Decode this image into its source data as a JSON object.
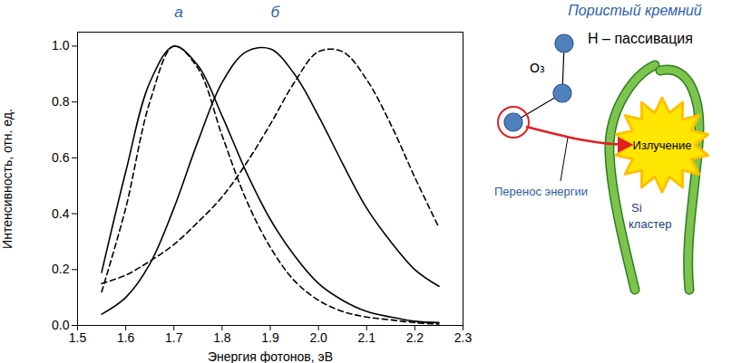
{
  "chart_data": {
    "type": "line",
    "x_label": "Энергия фотонов, эВ",
    "y_label": "Интенсивность, отн. ед.",
    "x": [
      1.55,
      1.6,
      1.65,
      1.7,
      1.75,
      1.8,
      1.85,
      1.9,
      1.95,
      2.0,
      2.05,
      2.1,
      2.15,
      2.2,
      2.25
    ],
    "series": [
      {
        "color": "#000000",
        "line_style": "solid",
        "values": [
          0.19,
          0.55,
          0.87,
          1.0,
          0.93,
          0.75,
          0.55,
          0.38,
          0.25,
          0.15,
          0.09,
          0.05,
          0.03,
          0.015,
          0.01
        ]
      },
      {
        "color": "#000000",
        "line_style": "dashed",
        "values": [
          0.12,
          0.42,
          0.8,
          1.0,
          0.92,
          0.68,
          0.45,
          0.28,
          0.16,
          0.09,
          0.05,
          0.03,
          0.02,
          0.01,
          0.005
        ]
      },
      {
        "color": "#000000",
        "line_style": "solid",
        "values": [
          0.04,
          0.1,
          0.22,
          0.42,
          0.66,
          0.87,
          0.98,
          0.99,
          0.9,
          0.75,
          0.58,
          0.42,
          0.3,
          0.2,
          0.14
        ]
      },
      {
        "color": "#000000",
        "line_style": "dashed",
        "values": [
          0.15,
          0.18,
          0.23,
          0.29,
          0.37,
          0.46,
          0.58,
          0.72,
          0.87,
          0.98,
          0.98,
          0.88,
          0.72,
          0.53,
          0.35
        ]
      }
    ],
    "annotations": [
      {
        "text": "а",
        "x": 1.71,
        "y": 1.12
      },
      {
        "text": "б",
        "x": 1.91,
        "y": 1.12
      }
    ],
    "xlim": [
      1.5,
      2.3
    ],
    "xticks": [
      1.5,
      1.6,
      1.7,
      1.8,
      1.9,
      {
        "value": 2,
        "label": "2.0"
      },
      2.1,
      2.2,
      2.3
    ],
    "ylim": [
      0,
      1.05
    ],
    "yticks": [
      {
        "value": 0,
        "label": "0.0"
      },
      0.2,
      0.4,
      0.6,
      0.8,
      {
        "value": 1,
        "label": "1.0"
      }
    ],
    "grid": false
  },
  "diagram": {
    "title": "Пористый кремний",
    "passivation": "H – пассивация",
    "molecule": "O₃",
    "emission": "Излучение",
    "transfer": "Перенос энергии",
    "cluster": [
      "Si",
      "кластер"
    ]
  }
}
